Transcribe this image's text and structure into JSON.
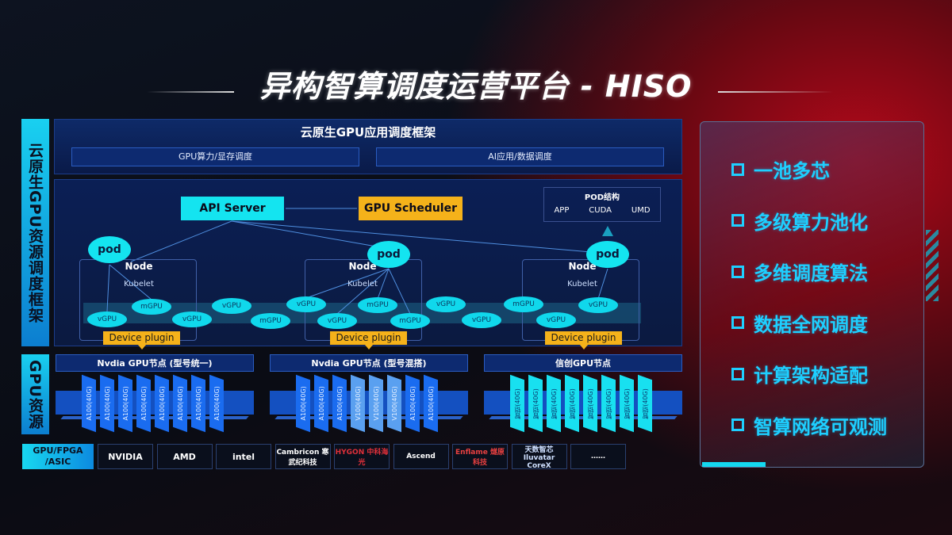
{
  "title": "异构智算调度运营平台 - HISO",
  "left_labels": {
    "framework": "云原生GPU资源调度框架",
    "resources": "GPU资源"
  },
  "framework": {
    "title": "云原生GPU应用调度框架",
    "bars": [
      "GPU算力/显存调度",
      "AI应用/数据调度"
    ]
  },
  "diagram": {
    "api_server": "API Server",
    "gpu_scheduler": "GPU Scheduler",
    "pod_structure": {
      "title": "POD结构",
      "items": [
        "APP",
        "CUDA",
        "UMD"
      ]
    },
    "pod": "pod",
    "node": "Node",
    "kubelet": "Kubelet",
    "device_plugin": "Device plugin",
    "units": [
      "vGPU",
      "mGPU",
      "vGPU",
      "vGPU",
      "mGPU",
      "vGPU",
      "vGPU",
      "mGPU",
      "mGPU",
      "vGPU",
      "vGPU",
      "mGPU",
      "vGPU",
      "vGPU"
    ]
  },
  "gpu_nodes": [
    {
      "title": "Nvdia GPU节点 (型号统一)",
      "cards": [
        "A100(40G)",
        "A100(40G)",
        "A100(40G)",
        "A100(40G)",
        "A100(40G)",
        "A100(40G)",
        "A100(40G)",
        "A100(40G)"
      ],
      "color": "#1a6cf0"
    },
    {
      "title": "Nvdia GPU节点 (型号混搭)",
      "cards": [
        "A100(40G)",
        "A100(40G)",
        "A100(40G)",
        "V100(40G)",
        "V100(40G)",
        "V100(40G)",
        "A100(40G)",
        "A100(40G)"
      ],
      "color": "#1a6cf0"
    },
    {
      "title": "信创GPU节点",
      "cards": [
        "智铠(40G)",
        "智铠(40G)",
        "智铠(40G)",
        "智铠(40G)",
        "智铠(40G)",
        "智铠(40G)",
        "智铠(40G)",
        "智铠(40G)"
      ],
      "color": "#18e0f0"
    }
  ],
  "vendors": {
    "label": "GPU/FPGA /ASIC",
    "logos": [
      "NVIDIA",
      "AMD",
      "intel",
      "Cambricon 寒武纪科技",
      "HYGON 中科海光",
      "Ascend",
      "Enflame 燧原科技",
      "天数智芯 Iluvatar CoreX",
      "……"
    ]
  },
  "features": [
    "一池多芯",
    "多级算力池化",
    "多维调度算法",
    "数据全网调度",
    "计算架构适配",
    "智算网络可观测"
  ],
  "colors": {
    "accent": "#14e4f0",
    "scheduler": "#f5b21a",
    "panel": "#0e2a68",
    "feature": "#1ecfff"
  }
}
